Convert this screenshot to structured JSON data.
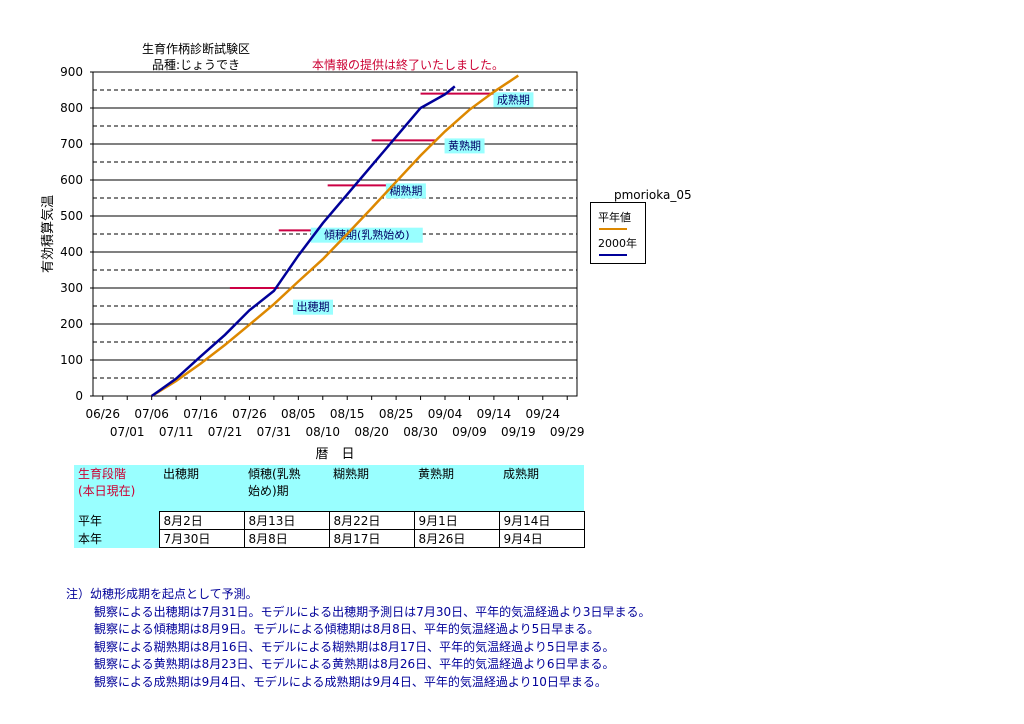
{
  "chart_data": {
    "type": "line",
    "title_lines": [
      "生育作柄診断試験区",
      "品種:じょうでき"
    ],
    "notice": "本情報の提供は終了いたしました。",
    "xlabel": "暦　日",
    "ylabel": "有効積算気温",
    "ylim": [
      0,
      900
    ],
    "yticks": [
      0,
      100,
      200,
      300,
      400,
      500,
      600,
      700,
      800,
      900
    ],
    "grid": true,
    "x_tick_labels_top": [
      "06/26",
      "07/06",
      "07/16",
      "07/26",
      "08/05",
      "08/15",
      "08/25",
      "09/04",
      "09/14",
      "09/24"
    ],
    "x_tick_labels_bottom": [
      "07/01",
      "07/11",
      "07/21",
      "07/31",
      "08/10",
      "08/20",
      "08/30",
      "09/09",
      "09/19",
      "09/29"
    ],
    "xlim": [
      "06/24",
      "10/01"
    ],
    "legend_placement": "right",
    "legend_title": "pmorioka_05",
    "series": [
      {
        "name": "平年値",
        "color": "#dd8800",
        "x": [
          "07/06",
          "07/11",
          "07/16",
          "07/21",
          "07/26",
          "07/31",
          "08/05",
          "08/10",
          "08/15",
          "08/20",
          "08/25",
          "08/30",
          "09/04",
          "09/09",
          "09/14",
          "09/19"
        ],
        "y": [
          0,
          42,
          90,
          142,
          198,
          255,
          318,
          380,
          450,
          522,
          595,
          668,
          735,
          795,
          845,
          890
        ]
      },
      {
        "name": "2000年",
        "color": "#000099",
        "x": [
          "07/06",
          "07/11",
          "07/16",
          "07/21",
          "07/26",
          "07/31",
          "08/05",
          "08/10",
          "08/15",
          "08/20",
          "08/25",
          "08/30",
          "09/04",
          "09/06"
        ],
        "y": [
          0,
          48,
          110,
          170,
          238,
          292,
          390,
          480,
          560,
          640,
          720,
          800,
          838,
          860
        ]
      }
    ],
    "stage_lines": [
      {
        "label": "出穂期",
        "y": 300,
        "from": "07/22",
        "to": "08/01",
        "label_date": "08/08",
        "label_y": 237
      },
      {
        "label": "傾穂期(乳熟始め)",
        "y": 460,
        "from": "08/01",
        "to": "08/14",
        "label_date": "08/19",
        "label_y": 437
      },
      {
        "label": "糊熟期",
        "y": 585,
        "from": "08/11",
        "to": "08/24",
        "label_date": "08/27",
        "label_y": 560
      },
      {
        "label": "黄熟期",
        "y": 710,
        "from": "08/20",
        "to": "09/02",
        "label_date": "09/08",
        "label_y": 685
      },
      {
        "label": "成熟期",
        "y": 840,
        "from": "08/30",
        "to": "09/16",
        "label_date": "09/18",
        "label_y": 813
      }
    ]
  },
  "stage_table": {
    "header_label": [
      "生育段階",
      "(本日現在)"
    ],
    "columns": [
      [
        "出穂期"
      ],
      [
        "傾穂(乳熟",
        "始め)期"
      ],
      [
        "糊熟期"
      ],
      [
        "黄熟期"
      ],
      [
        "成熟期"
      ]
    ],
    "rows": [
      {
        "label": "平年",
        "values": [
          "8月2日",
          "8月13日",
          "8月22日",
          "9月1日",
          "9月14日"
        ]
      },
      {
        "label": "本年",
        "values": [
          "7月30日",
          "8月8日",
          "8月17日",
          "8月26日",
          "9月4日"
        ]
      }
    ]
  },
  "notes": {
    "head": "注）幼穂形成期を起点として予測。",
    "lines": [
      "観察による出穂期は7月31日。モデルによる出穂期予測日は7月30日、平年的気温経過より3日早まる。",
      "観察による傾穂期は8月9日。モデルによる傾穂期は8月8日、平年的気温経過より5日早まる。",
      "観察による糊熟期は8月16日、モデルによる糊熟期は8月17日、平年的気温経過より5日早まる。",
      "観察による黄熟期は8月23日、モデルによる黄熟期は8月26日、平年的気温経過より6日早まる。",
      "観察による成熟期は9月4日、モデルによる成熟期は9月4日、平年的気温経過より10日早まる。"
    ]
  }
}
